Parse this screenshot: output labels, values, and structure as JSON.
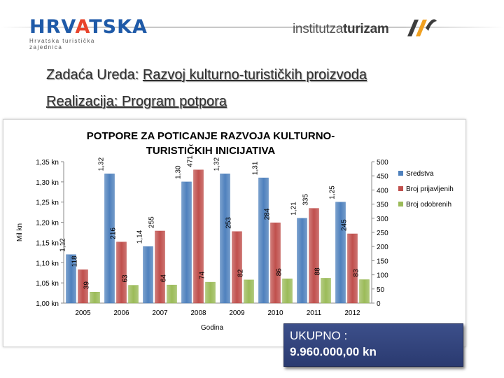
{
  "header": {
    "logo_left_word_a": "HRV",
    "logo_left_word_b": "A",
    "logo_left_word_c": "TSKA",
    "logo_left_tagline": "Hrvatska turistička zajednica",
    "logo_right_a": "institut",
    "logo_right_b": "za",
    "logo_right_c": "turizam",
    "accent_blue": "#1f5aa8",
    "accent_red": "#e8442c"
  },
  "heading": {
    "line1_prefix": "Zadaća Ureda: ",
    "line1_link": "Razvoj kulturno-turističkih proizvoda",
    "line2_link": "Realizacija: Program potpora "
  },
  "total": {
    "label": "UKUPNO :",
    "value": "9.960.000,00 kn"
  },
  "chart_data": {
    "type": "bar",
    "title": "POTPORE ZA POTICANJE RAZVOJA KULTURNO-TURISTIČKIH INICIJATIVA",
    "xlabel": "Godina",
    "ylabel_left": "Mil kn",
    "categories": [
      "2005",
      "2006",
      "2007",
      "2008",
      "2009",
      "2010",
      "2011",
      "2012"
    ],
    "left_axis": {
      "ticks": [
        "1,00 kn",
        "1,05 kn",
        "1,10 kn",
        "1,15 kn",
        "1,20 kn",
        "1,25 kn",
        "1,30 kn",
        "1,35 kn"
      ],
      "min": 1.0,
      "max": 1.35
    },
    "right_axis": {
      "ticks": [
        "0",
        "50",
        "100",
        "150",
        "200",
        "250",
        "300",
        "350",
        "400",
        "450",
        "500"
      ],
      "min": 0,
      "max": 500
    },
    "series": [
      {
        "name": "Sredstva",
        "axis": "left",
        "color": "#4f81bd",
        "values": [
          1.12,
          1.32,
          1.14,
          1.3,
          1.32,
          1.31,
          1.21,
          1.25
        ],
        "labels": [
          "1,12",
          "1,32",
          "1,14",
          "1,30",
          "1,32",
          "1,31",
          "1,21",
          "1,25"
        ]
      },
      {
        "name": "Broj prijavljenih",
        "axis": "right",
        "color": "#c0504d",
        "values": [
          118,
          216,
          255,
          471,
          253,
          284,
          335,
          245
        ],
        "labels": [
          "118",
          "216",
          "255",
          "471",
          "253",
          "284",
          "335",
          "245"
        ]
      },
      {
        "name": "Broj odobrenih",
        "axis": "right",
        "color": "#9bbb59",
        "values": [
          39,
          63,
          64,
          74,
          82,
          86,
          88,
          83
        ],
        "labels": [
          "39",
          "63",
          "64",
          "74",
          "82",
          "86",
          "88",
          "83"
        ]
      }
    ],
    "legend_position": "right",
    "grid": false
  }
}
